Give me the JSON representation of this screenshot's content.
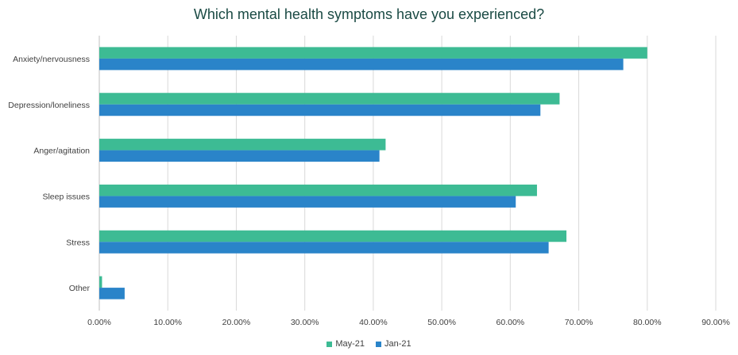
{
  "chart_data": {
    "type": "bar",
    "orientation": "horizontal",
    "title": "Which mental health symptoms have you experienced?",
    "categories": [
      "Anxiety/nervousness",
      "Depression/loneliness",
      "Anger/agitation",
      "Sleep issues",
      "Stress",
      "Other"
    ],
    "series": [
      {
        "name": "May-21",
        "color": "#3dbb94",
        "values": [
          80.0,
          67.2,
          41.8,
          63.9,
          68.2,
          0.4
        ]
      },
      {
        "name": "Jan-21",
        "color": "#2a84c9",
        "values": [
          76.5,
          64.4,
          40.9,
          60.8,
          65.6,
          3.7
        ]
      }
    ],
    "xlim": [
      0,
      90
    ],
    "xticks": [
      "0.00%",
      "10.00%",
      "20.00%",
      "30.00%",
      "40.00%",
      "50.00%",
      "60.00%",
      "70.00%",
      "80.00%",
      "90.00%"
    ],
    "grid": true,
    "legend_position": "bottom"
  }
}
